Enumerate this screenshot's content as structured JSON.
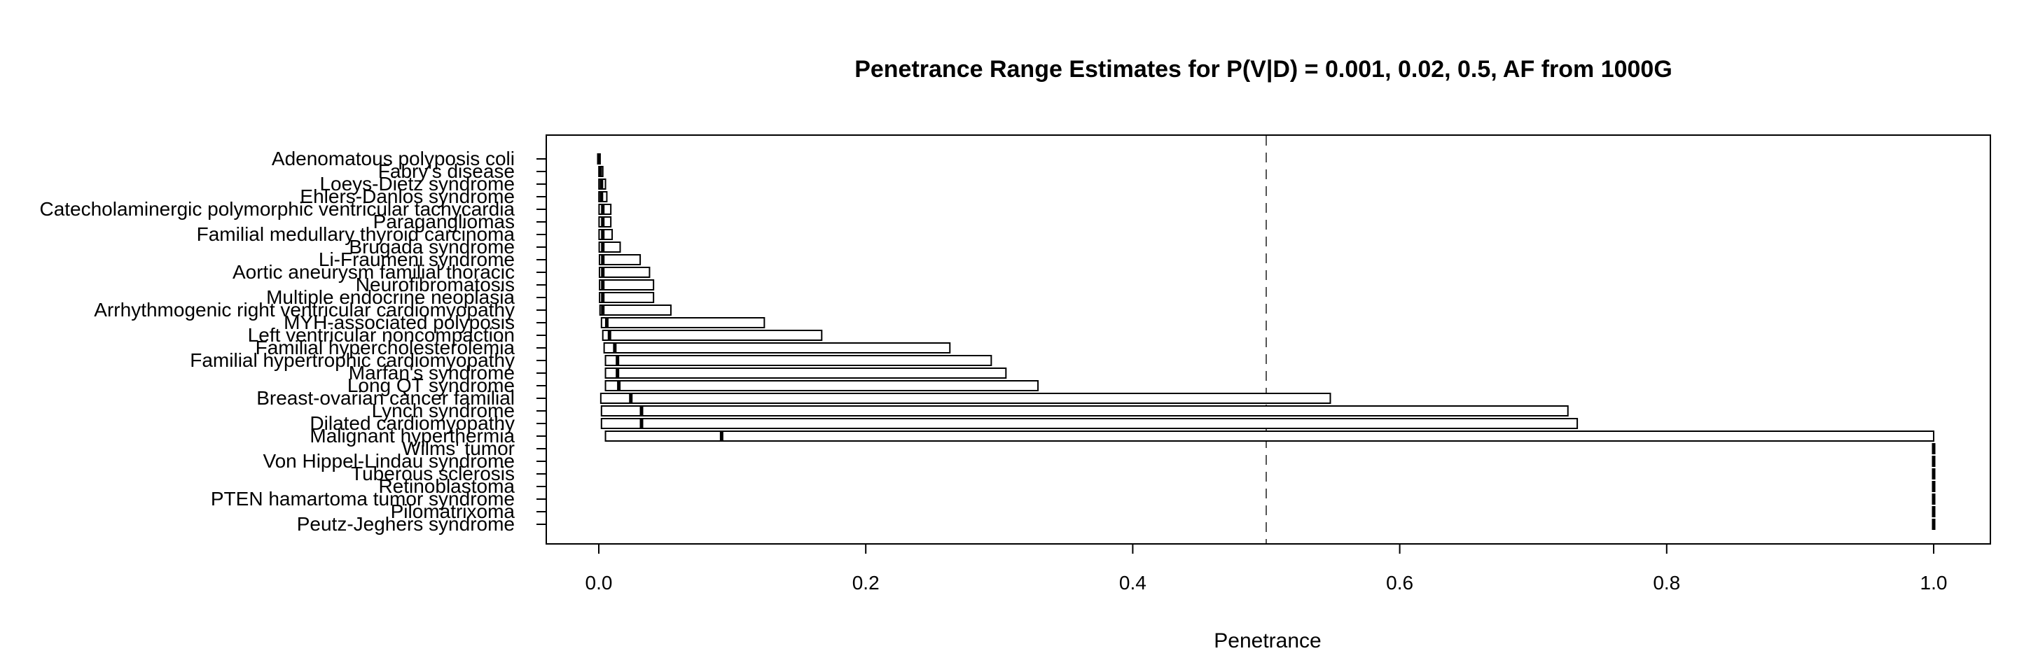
{
  "chart_data": {
    "type": "bar",
    "orientation": "horizontal",
    "title": "Penetrance Range Estimates for P(V|D) = 0.001, 0.02, 0.5, AF from 1000G",
    "xlabel": "Penetrance",
    "ylabel": "",
    "xlim": [
      0,
      1
    ],
    "xticks": [
      "0.0",
      "0.2",
      "0.4",
      "0.6",
      "0.8",
      "1.0"
    ],
    "reference_line": 0.5,
    "grid": false,
    "legend": "none",
    "colors": {
      "bar_fill": "#ffffff",
      "bar_stroke": "#000000",
      "marker": "#000000",
      "reference": "#555555"
    },
    "categories": [
      "Adenomatous polyposis coli",
      "Fabry's disease",
      "Loeys-Dietz syndrome",
      "Ehlers-Danlos syndrome",
      "Catecholaminergic polymorphic ventricular tachycardia",
      "Paragangliomas",
      "Familial medullary thyroid carcinoma",
      "Brugada syndrome",
      "Li-Fraumeni syndrome",
      "Aortic aneurysm familial thoracic",
      "Neurofibromatosis",
      "Multiple endocrine neoplasia",
      "Arrhythmogenic right ventricular cardiomyopathy",
      "MYH-associated polyposis",
      "Left ventricular noncompaction",
      "Familial hypercholesterolemia",
      "Familial hypertrophic cardiomyopathy",
      "Marfan's syndrome",
      "Long QT syndrome",
      "Breast-ovarian cancer familial",
      "Lynch syndrome",
      "Dilated cardiomyopathy",
      "Malignant hyperthermia",
      "Wilms' tumor",
      "Von Hippel-Lindau syndrome",
      "Tuberous sclerosis",
      "Retinoblastoma",
      "PTEN hamartoma tumor syndrome",
      "Pilomatrixoma",
      "Peutz-Jeghers syndrome"
    ],
    "series": [
      {
        "name": "P(V|D) = 0.001",
        "values": [
          0.0,
          0.0001,
          0.0001,
          0.0001,
          0.0002,
          0.0002,
          0.0002,
          0.0003,
          0.0005,
          0.0005,
          0.0006,
          0.0006,
          0.0009,
          0.002,
          0.003,
          0.004,
          0.005,
          0.005,
          0.005,
          0.0015,
          0.002,
          0.002,
          0.005,
          1.0,
          1.0,
          1.0,
          1.0,
          1.0,
          1.0,
          1.0
        ]
      },
      {
        "name": "P(V|D) = 0.02",
        "values": [
          0.0,
          0.001,
          0.002,
          0.002,
          0.003,
          0.003,
          0.003,
          0.003,
          0.003,
          0.003,
          0.003,
          0.003,
          0.003,
          0.006,
          0.008,
          0.012,
          0.014,
          0.014,
          0.015,
          0.024,
          0.032,
          0.032,
          0.092,
          1.0,
          1.0,
          1.0,
          1.0,
          1.0,
          1.0,
          1.0
        ]
      },
      {
        "name": "P(V|D) = 0.5",
        "values": [
          0.001,
          0.003,
          0.005,
          0.006,
          0.009,
          0.009,
          0.01,
          0.016,
          0.031,
          0.038,
          0.041,
          0.041,
          0.054,
          0.124,
          0.167,
          0.263,
          0.294,
          0.305,
          0.329,
          0.548,
          0.726,
          0.733,
          1.0,
          1.0,
          1.0,
          1.0,
          1.0,
          1.0,
          1.0,
          1.0
        ]
      }
    ]
  }
}
